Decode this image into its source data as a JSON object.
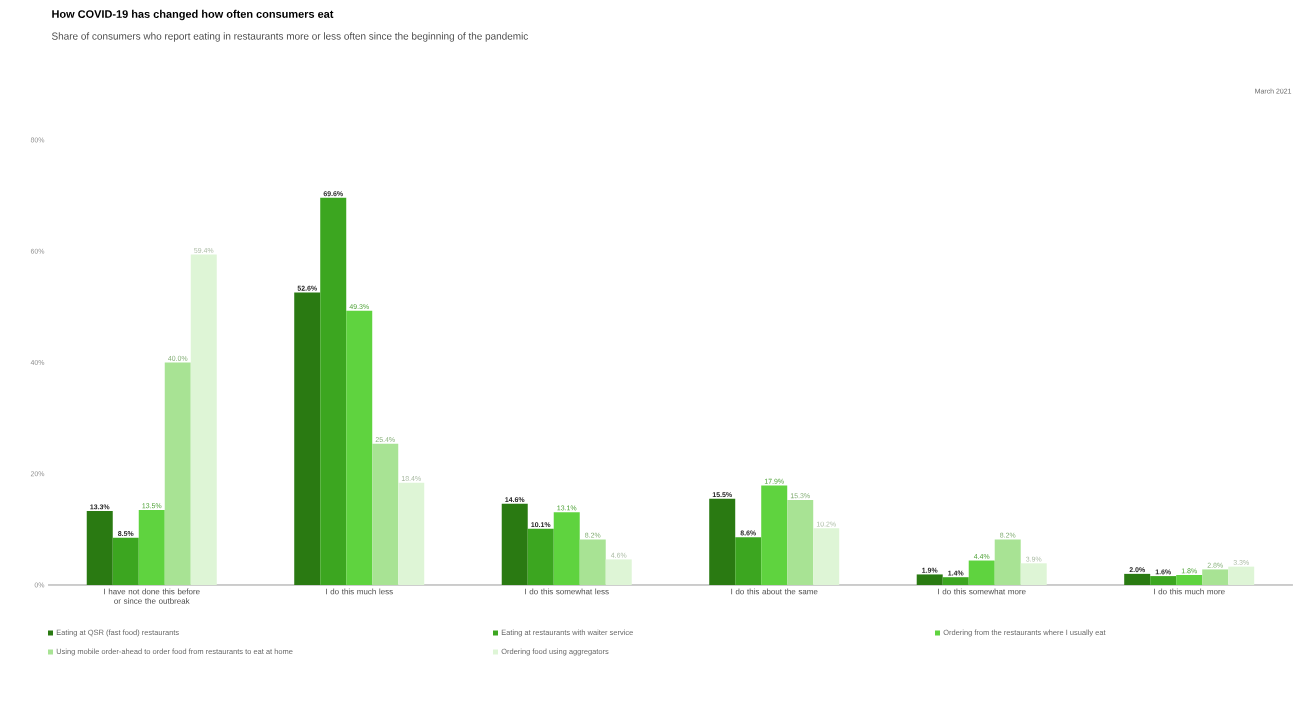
{
  "chart_data": {
    "type": "bar",
    "title": "How COVID-19 has changed how often consumers eat",
    "subtitle": "Share of consumers who report eating in restaurants more or less often since the beginning of the pandemic",
    "annotations": [
      "March 2021"
    ],
    "categories": [
      "I have not done this before or since the outbreak",
      "I do this much less",
      "I do this somewhat less",
      "I do this about the same",
      "I do this somewhat more",
      "I do this much more"
    ],
    "ylim": [
      0,
      80
    ],
    "yticks": [
      {
        "value": 0,
        "label": "0%"
      },
      {
        "value": 20,
        "label": "20%"
      },
      {
        "value": 40,
        "label": "40%"
      },
      {
        "value": 60,
        "label": "60%"
      },
      {
        "value": 80,
        "label": "80%"
      }
    ],
    "legend": "bottom",
    "grid": false,
    "series": [
      {
        "name": "Eating at QSR (fast food) restaurants",
        "color": "#2a7a12",
        "values": [
          13.3,
          52.6,
          14.6,
          15.5,
          1.9,
          2.0
        ],
        "value_labels": [
          "13.3%",
          "52.6%",
          "14.6%",
          "15.5%",
          "1.9%",
          "2.0%"
        ]
      },
      {
        "name": "Eating at restaurants with waiter service",
        "color": "#3ca620",
        "values": [
          8.5,
          69.6,
          10.1,
          8.6,
          1.4,
          1.6
        ],
        "value_labels": [
          "8.5%",
          "69.6%",
          "10.1%",
          "8.6%",
          "1.4%",
          "1.6%"
        ]
      },
      {
        "name": "Ordering from the restaurants where I usually eat",
        "color": "#5fd33f",
        "values": [
          13.5,
          49.3,
          13.1,
          17.9,
          4.4,
          1.8
        ],
        "value_labels": [
          "13.5%",
          "49.3%",
          "13.1%",
          "17.9%",
          "4.4%",
          "1.8%"
        ]
      },
      {
        "name": "Using mobile order-ahead to order food from restaurants to eat at home",
        "color": "#a8e394",
        "values": [
          40.0,
          25.4,
          8.2,
          15.3,
          8.2,
          2.8
        ],
        "value_labels": [
          "40.0%",
          "25.4%",
          "8.2%",
          "15.3%",
          "8.2%",
          "2.8%"
        ]
      },
      {
        "name": "Ordering food using aggregators",
        "color": "#def5d6",
        "values": [
          59.4,
          18.4,
          4.6,
          10.2,
          3.9,
          3.3
        ],
        "value_labels": [
          "59.4%",
          "18.4%",
          "4.6%",
          "10.2%",
          "3.9%",
          "3.3%"
        ]
      }
    ]
  }
}
